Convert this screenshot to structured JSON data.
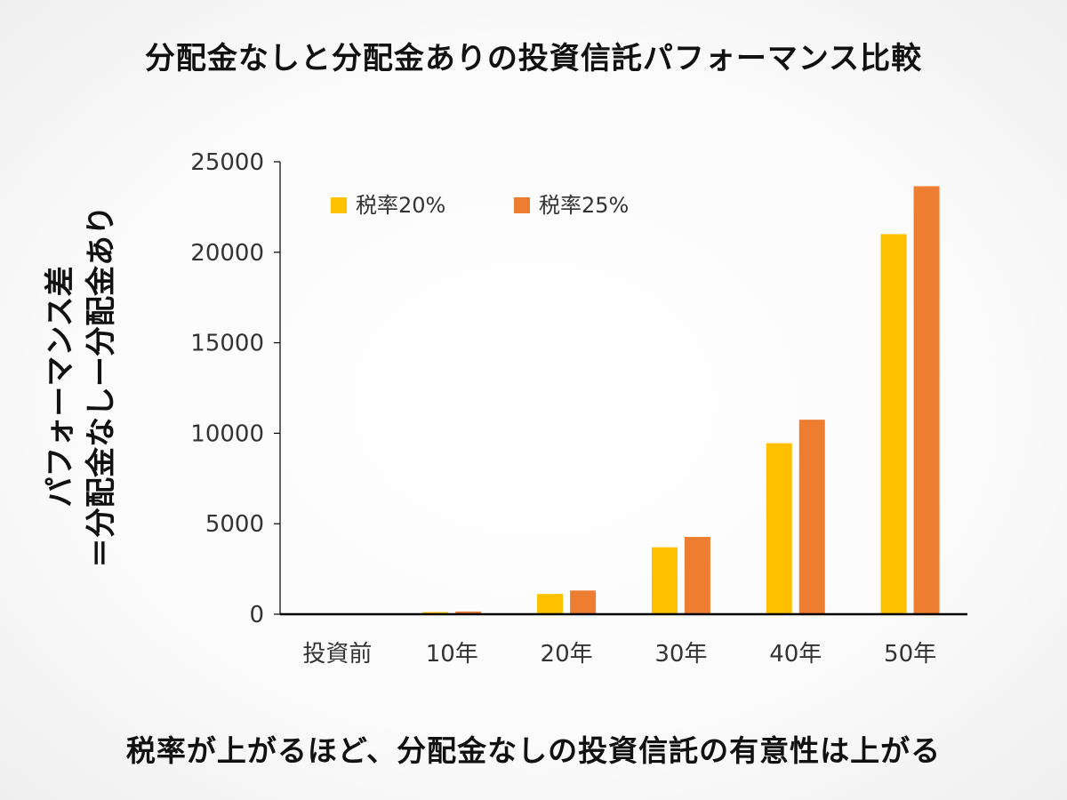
{
  "title": "分配金なしと分配金ありの投資信託パフォーマンス比較",
  "footer": "税率が上がるほど、分配金なしの投資信託の有意性は上がる",
  "colors": {
    "series1": "#FFC000",
    "series2": "#ED7D31",
    "axis": "#000000",
    "text": "#333333"
  },
  "chart_data": {
    "type": "bar",
    "categories": [
      "投資前",
      "10年",
      "20年",
      "30年",
      "40年",
      "50年"
    ],
    "series": [
      {
        "name": "税率20%",
        "values": [
          0,
          120,
          1120,
          3700,
          9450,
          21000
        ]
      },
      {
        "name": "税率25%",
        "values": [
          0,
          150,
          1310,
          4270,
          10750,
          23650
        ]
      }
    ],
    "ylabel_lines": [
      "パフォーマンス差",
      "＝分配金なしー分配金あり"
    ],
    "ylim": [
      0,
      25000
    ],
    "yticks": [
      0,
      5000,
      10000,
      15000,
      20000,
      25000
    ],
    "legend_position": "top-left",
    "grid": false
  }
}
